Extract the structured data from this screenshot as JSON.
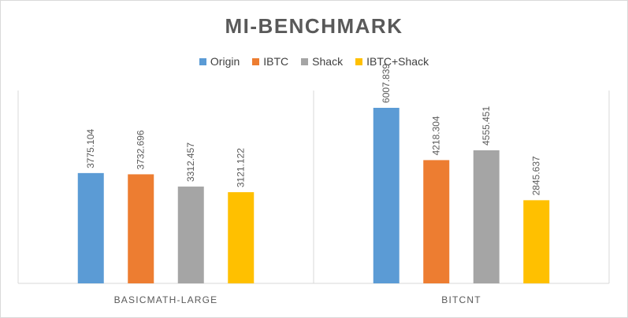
{
  "chart_data": {
    "type": "bar",
    "title": "MI-BENCHMARK",
    "xlabel": "",
    "ylabel": "",
    "ylim": [
      0,
      6600
    ],
    "grid": false,
    "legend_position": "top",
    "categories": [
      "BASICMATH-LARGE",
      "BITCNT"
    ],
    "series": [
      {
        "name": "Origin",
        "color": "#5b9bd5",
        "values": [
          3775.104,
          6007.839
        ],
        "labels": [
          "3775.104",
          "6007.839"
        ]
      },
      {
        "name": "IBTC",
        "color": "#ed7d31",
        "values": [
          3732.696,
          4218.304
        ],
        "labels": [
          "3732.696",
          "4218.304"
        ]
      },
      {
        "name": "Shack",
        "color": "#a5a5a5",
        "values": [
          3312.457,
          4555.451
        ],
        "labels": [
          "3312.457",
          "4555.451"
        ]
      },
      {
        "name": "IBTC+Shack",
        "color": "#ffc000",
        "values": [
          3121.122,
          2845.637
        ],
        "labels": [
          "3121.122",
          "2845.637"
        ]
      }
    ]
  }
}
